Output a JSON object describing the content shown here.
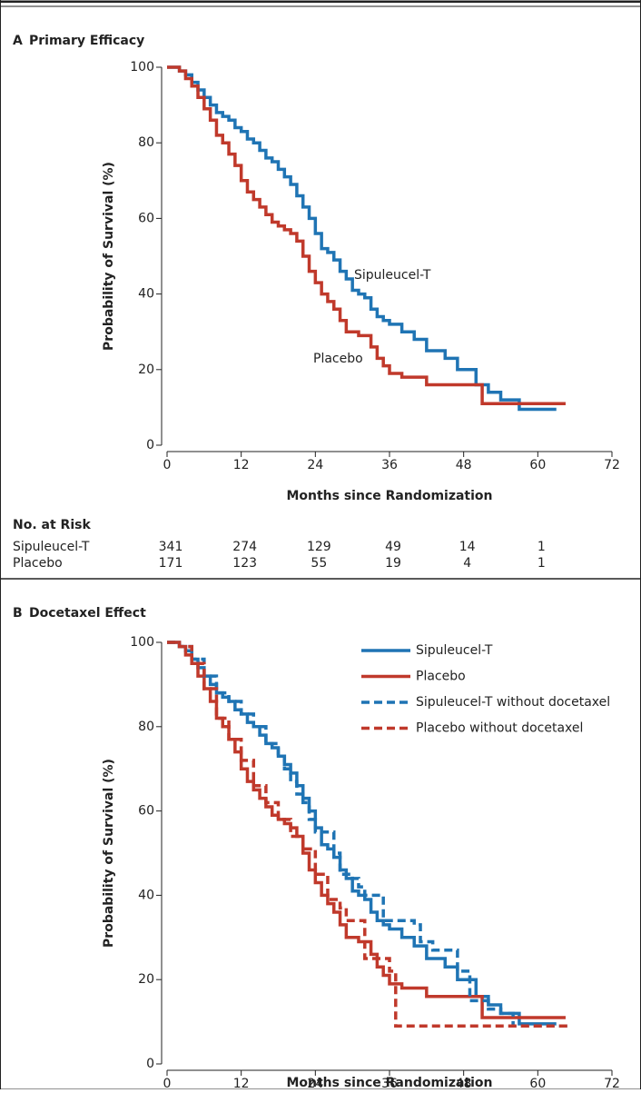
{
  "chart_data": [
    {
      "type": "line",
      "step": "post",
      "panel": "A",
      "title": "Primary Efficacy",
      "xlabel": "Months since Randomization",
      "ylabel": "Probability of Survival (%)",
      "xlim": [
        0,
        72
      ],
      "xticks": [
        0,
        12,
        24,
        36,
        48,
        60,
        72
      ],
      "ylim": [
        0,
        100
      ],
      "yticks": [
        0,
        20,
        40,
        60,
        80,
        100
      ],
      "series": [
        {
          "name": "Sipuleucel-T",
          "color": "#1f74b4",
          "dashed": false,
          "x": [
            0,
            1,
            2,
            3,
            4,
            5,
            6,
            7,
            8,
            9,
            10,
            11,
            12,
            13,
            14,
            15,
            16,
            17,
            18,
            19,
            20,
            21,
            22,
            23,
            24,
            25,
            26,
            27,
            28,
            29,
            30,
            31,
            32,
            33,
            34,
            35,
            36,
            38,
            40,
            42,
            45,
            47,
            49,
            50,
            52,
            54,
            57,
            63
          ],
          "values": [
            100,
            100,
            99,
            98,
            96,
            94,
            92,
            90,
            88,
            87,
            86,
            84,
            83,
            81,
            80,
            78,
            76,
            75,
            73,
            71,
            69,
            66,
            63,
            60,
            56,
            52,
            51,
            49,
            46,
            44,
            41,
            40,
            39,
            36,
            34,
            33,
            32,
            30,
            28,
            25,
            23,
            20,
            20,
            16,
            14,
            12,
            9.5,
            9.5
          ]
        },
        {
          "name": "Placebo",
          "color": "#c0392b",
          "dashed": false,
          "x": [
            0,
            1,
            2,
            3,
            4,
            5,
            6,
            7,
            8,
            9,
            10,
            11,
            12,
            13,
            14,
            15,
            16,
            17,
            18,
            19,
            20,
            21,
            22,
            23,
            24,
            25,
            26,
            27,
            28,
            29,
            31,
            33,
            34,
            35,
            36,
            38,
            42,
            51,
            64.5
          ],
          "values": [
            100,
            100,
            99,
            97,
            95,
            92,
            89,
            86,
            82,
            80,
            77,
            74,
            70,
            67,
            65,
            63,
            61,
            59,
            58,
            57,
            56,
            54,
            50,
            46,
            43,
            40,
            38,
            36,
            33,
            30,
            29,
            26,
            23,
            21,
            19,
            18,
            16,
            11,
            11
          ]
        }
      ],
      "risk_table": {
        "title": "No. at Risk",
        "rows": [
          {
            "name": "Sipuleucel-T",
            "values": [
              341,
              274,
              129,
              49,
              14,
              1
            ]
          },
          {
            "name": "Placebo",
            "values": [
              171,
              123,
              55,
              19,
              4,
              1
            ]
          }
        ]
      }
    },
    {
      "type": "line",
      "step": "post",
      "panel": "B",
      "title": "Docetaxel Effect",
      "xlabel": "Months since Randomization",
      "ylabel": "Probability of Survival (%)",
      "xlim": [
        0,
        72
      ],
      "xticks": [
        0,
        12,
        24,
        36,
        48,
        60,
        72
      ],
      "ylim": [
        0,
        100
      ],
      "yticks": [
        0,
        20,
        40,
        60,
        80,
        100
      ],
      "legend": "upper right",
      "series": [
        {
          "name": "Sipuleucel-T",
          "color": "#1f74b4",
          "dashed": false,
          "x": [
            0,
            1,
            2,
            3,
            4,
            5,
            6,
            7,
            8,
            9,
            10,
            11,
            12,
            13,
            14,
            15,
            16,
            17,
            18,
            19,
            20,
            21,
            22,
            23,
            24,
            25,
            26,
            27,
            28,
            29,
            30,
            31,
            32,
            33,
            34,
            35,
            36,
            38,
            40,
            42,
            45,
            47,
            49,
            50,
            52,
            54,
            57,
            63
          ],
          "values": [
            100,
            100,
            99,
            98,
            96,
            94,
            92,
            90,
            88,
            87,
            86,
            84,
            83,
            81,
            80,
            78,
            76,
            75,
            73,
            71,
            69,
            66,
            63,
            60,
            56,
            52,
            51,
            49,
            46,
            44,
            41,
            40,
            39,
            36,
            34,
            33,
            32,
            30,
            28,
            25,
            23,
            20,
            20,
            16,
            14,
            12,
            9.5,
            9.5
          ]
        },
        {
          "name": "Placebo",
          "color": "#c0392b",
          "dashed": false,
          "x": [
            0,
            1,
            2,
            3,
            4,
            5,
            6,
            7,
            8,
            9,
            10,
            11,
            12,
            13,
            14,
            15,
            16,
            17,
            18,
            19,
            20,
            21,
            22,
            23,
            24,
            25,
            26,
            27,
            28,
            29,
            31,
            33,
            34,
            35,
            36,
            38,
            42,
            51,
            64.5
          ],
          "values": [
            100,
            100,
            99,
            97,
            95,
            92,
            89,
            86,
            82,
            80,
            77,
            74,
            70,
            67,
            65,
            63,
            61,
            59,
            58,
            57,
            56,
            54,
            50,
            46,
            43,
            40,
            38,
            36,
            33,
            30,
            29,
            26,
            23,
            21,
            19,
            18,
            16,
            11,
            11
          ]
        },
        {
          "name": "Sipuleucel-T without docetaxel",
          "color": "#1f74b4",
          "dashed": true,
          "x": [
            0,
            2,
            4,
            6,
            8,
            10,
            12,
            14,
            16,
            18,
            19,
            20,
            21,
            22,
            23,
            24,
            26,
            27,
            28,
            30,
            31,
            32,
            34,
            35,
            40,
            41,
            43,
            46,
            47,
            49,
            52,
            54,
            56,
            65
          ],
          "values": [
            100,
            99,
            96,
            92,
            88,
            86,
            83,
            80,
            76,
            73,
            70,
            67,
            64,
            62,
            58,
            55,
            55,
            50,
            45,
            44,
            42,
            40,
            40,
            34,
            33,
            29,
            27,
            27,
            22,
            15,
            13,
            12,
            9,
            9
          ]
        },
        {
          "name": "Placebo without docetaxel",
          "color": "#c0392b",
          "dashed": true,
          "x": [
            0,
            2,
            4,
            6,
            8,
            10,
            12,
            14,
            16,
            18,
            20,
            22,
            24,
            26,
            28,
            29,
            31,
            32,
            36,
            37,
            65
          ],
          "values": [
            100,
            99,
            95,
            89,
            82,
            77,
            72,
            66,
            62,
            58,
            54,
            51,
            45,
            39,
            37,
            34,
            34,
            25,
            22,
            9,
            9
          ]
        }
      ]
    }
  ]
}
